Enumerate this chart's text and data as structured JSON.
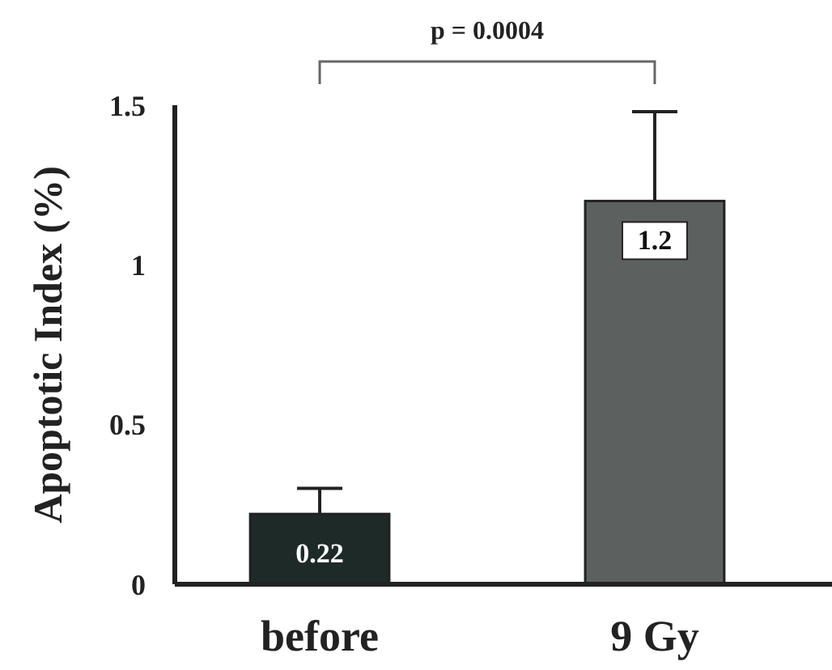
{
  "chart_data": {
    "type": "bar",
    "ylabel": "Apoptotic Index (%)",
    "categories": [
      "before",
      "9 Gy"
    ],
    "values": [
      0.22,
      1.2
    ],
    "colors": [
      "#1e2a28",
      "#5c605e"
    ],
    "errors": [
      [
        0.22,
        0.3
      ],
      [
        1.2,
        1.48
      ]
    ],
    "ylim": [
      0,
      1.5
    ],
    "yticks": [
      0,
      0.5,
      1,
      1.5
    ],
    "grid": false,
    "legend": false,
    "data_labels": true,
    "annotations": [
      "p = 0.0004"
    ]
  }
}
